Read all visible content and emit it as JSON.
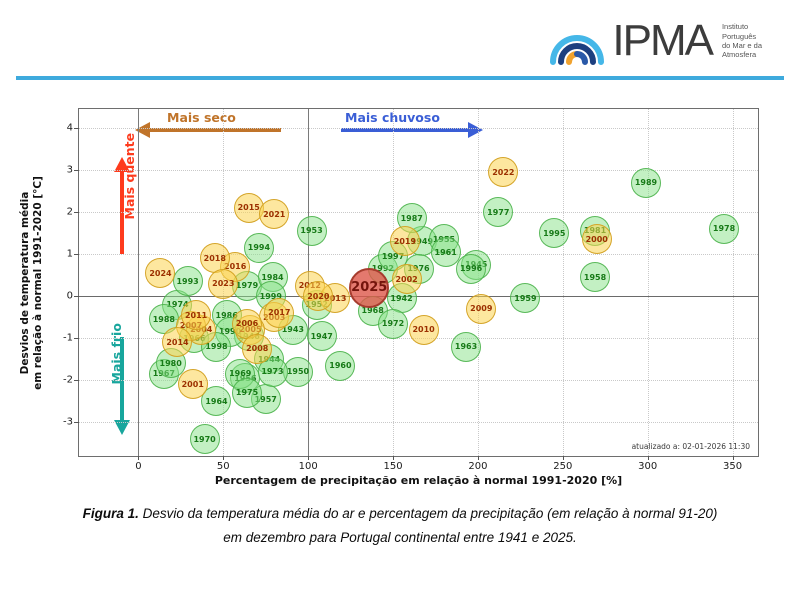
{
  "header": {
    "logo_text": "IPMA",
    "logo_subtext_lines": [
      "Instituto",
      "Português",
      "do Mar e da",
      "Atmosfera"
    ]
  },
  "chart": {
    "annotations": {
      "drier": {
        "label": "Mais seco",
        "color": "#c0742a"
      },
      "wetter": {
        "label": "Mais chuvoso",
        "color": "#3a5ed6"
      },
      "warmer": {
        "label": "Mais quente",
        "color": "#fe3b1d"
      },
      "colder": {
        "label": "Mais frio",
        "color": "#18a69d"
      }
    },
    "updated_text": "atualizado a: 02-01-2026 11:30"
  },
  "chart_data": {
    "type": "scatter",
    "title": "",
    "xlabel": "Percentagem de precipitação em relação à normal 1991-2020 [%]",
    "ylabel_line1": "Desvios de temperatura média",
    "ylabel_line2": "em relação à normal 1991-2020 [°C]",
    "xlim": [
      -35,
      365
    ],
    "ylim": [
      -3.8,
      4.45
    ],
    "x_ticks": [
      0,
      50,
      100,
      150,
      200,
      250,
      300,
      350
    ],
    "y_ticks": [
      -3,
      -2,
      -1,
      0,
      1,
      2,
      3,
      4
    ],
    "x_ref_lines": [
      0,
      100
    ],
    "y_ref_lines": [
      0
    ],
    "grid": "dotted",
    "legend": "none",
    "series_colors": {
      "past": "#87e287",
      "recent": "#fbd450",
      "current": "#dd584a"
    },
    "points": [
      {
        "year": "1942",
        "x": 155,
        "y": -0.05,
        "series": "past"
      },
      {
        "year": "1943",
        "x": 91,
        "y": -0.8,
        "series": "past"
      },
      {
        "year": "1944",
        "x": 77,
        "y": -1.5,
        "series": "past"
      },
      {
        "year": "1945",
        "x": 199,
        "y": 0.75,
        "series": "past"
      },
      {
        "year": "1946",
        "x": 65,
        "y": -0.95,
        "series": "past"
      },
      {
        "year": "1947",
        "x": 108,
        "y": -0.95,
        "series": "past"
      },
      {
        "year": "1949",
        "x": 167,
        "y": 1.3,
        "series": "past"
      },
      {
        "year": "1950",
        "x": 94,
        "y": -1.8,
        "series": "past"
      },
      {
        "year": "1952",
        "x": 105,
        "y": -0.2,
        "series": "past"
      },
      {
        "year": "1953",
        "x": 102,
        "y": 1.55,
        "series": "past"
      },
      {
        "year": "1955",
        "x": 180,
        "y": 1.35,
        "series": "past"
      },
      {
        "year": "1956",
        "x": 63,
        "y": -1.95,
        "series": "past"
      },
      {
        "year": "1957",
        "x": 75,
        "y": -2.45,
        "series": "past"
      },
      {
        "year": "1958",
        "x": 269,
        "y": 0.45,
        "series": "past"
      },
      {
        "year": "1959",
        "x": 228,
        "y": -0.05,
        "series": "past"
      },
      {
        "year": "1960",
        "x": 119,
        "y": -1.65,
        "series": "past"
      },
      {
        "year": "1961",
        "x": 181,
        "y": 1.05,
        "series": "past"
      },
      {
        "year": "1963",
        "x": 193,
        "y": -1.2,
        "series": "past"
      },
      {
        "year": "1964",
        "x": 46,
        "y": -2.5,
        "series": "past"
      },
      {
        "year": "1966",
        "x": 33,
        "y": -1.0,
        "series": "past"
      },
      {
        "year": "1967",
        "x": 15,
        "y": -1.85,
        "series": "past"
      },
      {
        "year": "1968",
        "x": 138,
        "y": -0.35,
        "series": "past"
      },
      {
        "year": "1969",
        "x": 60,
        "y": -1.85,
        "series": "past"
      },
      {
        "year": "1970",
        "x": 39,
        "y": -3.4,
        "series": "past"
      },
      {
        "year": "1972",
        "x": 150,
        "y": -0.65,
        "series": "past"
      },
      {
        "year": "1973",
        "x": 79,
        "y": -1.8,
        "series": "past"
      },
      {
        "year": "1974",
        "x": 23,
        "y": -0.2,
        "series": "past"
      },
      {
        "year": "1975",
        "x": 64,
        "y": -2.3,
        "series": "past"
      },
      {
        "year": "1976",
        "x": 165,
        "y": 0.65,
        "series": "past"
      },
      {
        "year": "1977",
        "x": 212,
        "y": 2.0,
        "series": "past"
      },
      {
        "year": "1978",
        "x": 345,
        "y": 1.6,
        "series": "past"
      },
      {
        "year": "1979",
        "x": 64,
        "y": 0.25,
        "series": "past"
      },
      {
        "year": "1980",
        "x": 19,
        "y": -1.6,
        "series": "past"
      },
      {
        "year": "1981",
        "x": 269,
        "y": 1.55,
        "series": "past"
      },
      {
        "year": "1984",
        "x": 79,
        "y": 0.45,
        "series": "past"
      },
      {
        "year": "1986",
        "x": 52,
        "y": -0.45,
        "series": "past"
      },
      {
        "year": "1987",
        "x": 161,
        "y": 1.85,
        "series": "past"
      },
      {
        "year": "1988",
        "x": 15,
        "y": -0.55,
        "series": "past"
      },
      {
        "year": "1989",
        "x": 299,
        "y": 2.7,
        "series": "past"
      },
      {
        "year": "1990",
        "x": 54,
        "y": -0.85,
        "series": "past"
      },
      {
        "year": "1992",
        "x": 144,
        "y": 0.65,
        "series": "past"
      },
      {
        "year": "1993",
        "x": 29,
        "y": 0.35,
        "series": "past"
      },
      {
        "year": "1994",
        "x": 71,
        "y": 1.15,
        "series": "past"
      },
      {
        "year": "1995",
        "x": 245,
        "y": 1.5,
        "series": "past"
      },
      {
        "year": "1996",
        "x": 196,
        "y": 0.65,
        "series": "past"
      },
      {
        "year": "1997",
        "x": 150,
        "y": 0.95,
        "series": "past"
      },
      {
        "year": "1998",
        "x": 46,
        "y": -1.2,
        "series": "past"
      },
      {
        "year": "1999",
        "x": 78,
        "y": 0.0,
        "series": "past"
      },
      {
        "year": "2000",
        "x": 270,
        "y": 1.35,
        "series": "recent"
      },
      {
        "year": "2001",
        "x": 32,
        "y": -2.1,
        "series": "recent"
      },
      {
        "year": "2002",
        "x": 158,
        "y": 0.4,
        "series": "recent"
      },
      {
        "year": "2003",
        "x": 80,
        "y": -0.5,
        "series": "recent"
      },
      {
        "year": "2004",
        "x": 37,
        "y": -0.8,
        "series": "recent"
      },
      {
        "year": "2005",
        "x": 66,
        "y": -0.8,
        "series": "recent"
      },
      {
        "year": "2006",
        "x": 64,
        "y": -0.65,
        "series": "recent"
      },
      {
        "year": "2007",
        "x": 31,
        "y": -0.7,
        "series": "recent"
      },
      {
        "year": "2008",
        "x": 70,
        "y": -1.25,
        "series": "recent"
      },
      {
        "year": "2009",
        "x": 202,
        "y": -0.3,
        "series": "recent"
      },
      {
        "year": "2010",
        "x": 168,
        "y": -0.8,
        "series": "recent"
      },
      {
        "year": "2011",
        "x": 34,
        "y": -0.45,
        "series": "recent"
      },
      {
        "year": "2012",
        "x": 101,
        "y": 0.25,
        "series": "recent"
      },
      {
        "year": "2013",
        "x": 116,
        "y": -0.05,
        "series": "recent"
      },
      {
        "year": "2014",
        "x": 23,
        "y": -1.1,
        "series": "recent"
      },
      {
        "year": "2015",
        "x": 65,
        "y": 2.1,
        "series": "recent"
      },
      {
        "year": "2016",
        "x": 57,
        "y": 0.7,
        "series": "recent"
      },
      {
        "year": "2017",
        "x": 83,
        "y": -0.4,
        "series": "recent"
      },
      {
        "year": "2018",
        "x": 45,
        "y": 0.9,
        "series": "recent"
      },
      {
        "year": "2019",
        "x": 157,
        "y": 1.3,
        "series": "recent"
      },
      {
        "year": "2020",
        "x": 106,
        "y": 0.0,
        "series": "recent"
      },
      {
        "year": "2021",
        "x": 80,
        "y": 1.95,
        "series": "recent"
      },
      {
        "year": "2022",
        "x": 215,
        "y": 2.95,
        "series": "recent"
      },
      {
        "year": "2023",
        "x": 50,
        "y": 0.3,
        "series": "recent"
      },
      {
        "year": "2024",
        "x": 13,
        "y": 0.55,
        "series": "recent"
      },
      {
        "year": "2025",
        "x": 136,
        "y": 0.2,
        "series": "current"
      }
    ]
  },
  "caption": {
    "prefix": "Figura 1.",
    "line1_rest": " Desvio da temperatura média do ar e percentagem da precipitação (em relação à normal 91-20)",
    "line2": "em dezembro para Portugal continental entre 1941 e 2025."
  }
}
